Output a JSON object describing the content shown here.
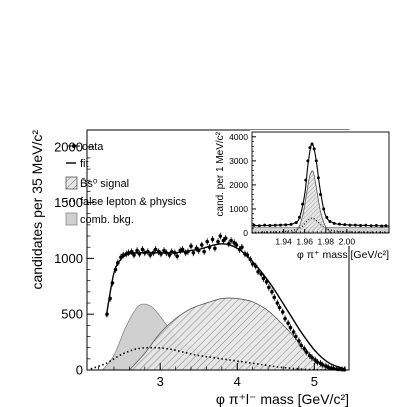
{
  "chart_data": [
    {
      "type": "line",
      "xlabel": "φ π⁺l⁻ mass [GeV/c²]",
      "ylabel": "candidates per 35 MeV/c²",
      "xlim": [
        2.05,
        5.45
      ],
      "ylim": [
        0,
        2150
      ],
      "xticks": [
        3,
        4,
        5
      ],
      "yticks": [
        0,
        500,
        1000,
        1500,
        2000
      ],
      "legend": {
        "placement": "top-left",
        "entries": [
          {
            "label": "data",
            "style": "marker"
          },
          {
            "label": "fit",
            "style": "solid-line"
          },
          {
            "label": "B̄s⁰ signal",
            "style": "hatched-fill"
          },
          {
            "label": "false lepton & physics",
            "style": "dotted-line"
          },
          {
            "label": "comb. bkg.",
            "style": "gray-fill"
          }
        ]
      },
      "data": {
        "x": [
          2.31,
          2.35,
          2.38,
          2.42,
          2.45,
          2.49,
          2.52,
          2.56,
          2.59,
          2.63,
          2.66,
          2.7,
          2.73,
          2.77,
          2.8,
          2.84,
          2.87,
          2.91,
          2.94,
          2.98,
          3.01,
          3.05,
          3.08,
          3.12,
          3.15,
          3.19,
          3.22,
          3.26,
          3.29,
          3.33,
          3.36,
          3.4,
          3.43,
          3.47,
          3.5,
          3.54,
          3.57,
          3.61,
          3.64,
          3.68,
          3.71,
          3.75,
          3.78,
          3.82,
          3.85,
          3.89,
          3.92,
          3.96,
          3.99,
          4.03,
          4.06,
          4.1,
          4.13,
          4.17,
          4.2,
          4.24,
          4.27,
          4.31,
          4.34,
          4.38,
          4.41,
          4.45,
          4.48,
          4.52,
          4.55,
          4.59,
          4.62,
          4.66,
          4.69,
          4.73,
          4.76,
          4.8,
          4.83,
          4.87,
          4.9,
          4.94,
          4.97,
          5.01,
          5.04,
          5.08,
          5.11,
          5.15,
          5.18,
          5.22,
          5.25,
          5.29,
          5.32,
          5.36,
          5.39
        ],
        "y": [
          500,
          640,
          780,
          900,
          960,
          1010,
          1030,
          1040,
          1050,
          1060,
          1030,
          1070,
          1040,
          1080,
          1050,
          1060,
          1030,
          1050,
          1080,
          1060,
          1040,
          1070,
          1050,
          1030,
          1060,
          1050,
          1020,
          1070,
          1080,
          1050,
          1060,
          1110,
          1050,
          1090,
          1070,
          1120,
          1060,
          1150,
          1100,
          1170,
          1090,
          1150,
          1200,
          1160,
          1180,
          1130,
          1160,
          1140,
          1120,
          1080,
          1100,
          1040,
          1030,
          990,
          950,
          930,
          880,
          860,
          820,
          790,
          740,
          700,
          650,
          600,
          560,
          520,
          460,
          420,
          380,
          340,
          300,
          260,
          220,
          190,
          160,
          130,
          110,
          90,
          70,
          60,
          45,
          35,
          25,
          18,
          12,
          8,
          5,
          3,
          2
        ],
        "yerr": 30
      },
      "fit": {
        "x": [
          2.3,
          2.4,
          2.5,
          2.6,
          2.7,
          2.8,
          2.9,
          3.0,
          3.1,
          3.2,
          3.3,
          3.4,
          3.5,
          3.6,
          3.7,
          3.8,
          3.9,
          4.0,
          4.1,
          4.2,
          4.3,
          4.4,
          4.5,
          4.6,
          4.7,
          4.8,
          4.9,
          5.0,
          5.1,
          5.2,
          5.3,
          5.4
        ],
        "y": [
          480,
          870,
          1000,
          1040,
          1050,
          1050,
          1050,
          1050,
          1050,
          1050,
          1060,
          1070,
          1080,
          1100,
          1120,
          1130,
          1120,
          1090,
          1040,
          970,
          890,
          800,
          700,
          590,
          480,
          370,
          270,
          180,
          110,
          60,
          30,
          10
        ]
      },
      "signal": {
        "x": [
          2.6,
          2.8,
          3.0,
          3.2,
          3.4,
          3.6,
          3.8,
          4.0,
          4.2,
          4.4,
          4.6,
          4.8,
          5.0,
          5.2,
          5.4
        ],
        "y": [
          0,
          150,
          330,
          460,
          550,
          600,
          640,
          640,
          610,
          530,
          400,
          250,
          100,
          20,
          0
        ]
      },
      "false_lepton_physics": {
        "x": [
          2.1,
          2.3,
          2.5,
          2.7,
          2.9,
          3.1,
          3.3,
          3.5,
          3.7,
          3.9,
          4.1,
          4.3,
          4.5,
          4.7,
          4.9,
          5.1,
          5.3
        ],
        "y": [
          10,
          60,
          140,
          190,
          200,
          190,
          160,
          130,
          110,
          90,
          70,
          50,
          30,
          15,
          5,
          2,
          0
        ]
      },
      "comb_bkg": {
        "x": [
          2.25,
          2.4,
          2.55,
          2.7,
          2.8,
          2.9,
          3.0,
          3.2,
          3.4,
          3.6,
          3.8,
          4.0,
          4.2,
          4.4,
          4.6
        ],
        "y": [
          0,
          130,
          380,
          560,
          590,
          560,
          480,
          300,
          200,
          150,
          100,
          70,
          40,
          15,
          0
        ]
      }
    },
    {
      "type": "line",
      "xlabel": "φ π⁺ mass [GeV/c²]",
      "ylabel": "cand. per 1 MeV/c²",
      "xlim": [
        1.91,
        2.04
      ],
      "ylim": [
        0,
        4200
      ],
      "xticks": [
        1.94,
        1.96,
        1.98,
        2.0
      ],
      "xtick_labels": [
        "1.94",
        "1.96",
        "1.98",
        "2.00"
      ],
      "yticks": [
        0,
        1000,
        2000,
        3000,
        4000
      ],
      "data": {
        "x": [
          1.912,
          1.917,
          1.922,
          1.927,
          1.932,
          1.937,
          1.942,
          1.947,
          1.952,
          1.955,
          1.958,
          1.961,
          1.963,
          1.965,
          1.967,
          1.969,
          1.971,
          1.973,
          1.975,
          1.978,
          1.981,
          1.984,
          1.988,
          1.993,
          1.998,
          2.003,
          2.008,
          2.013,
          2.018,
          2.023,
          2.028,
          2.033,
          2.037
        ],
        "y": [
          320,
          300,
          330,
          310,
          320,
          330,
          340,
          360,
          430,
          650,
          1200,
          2200,
          3000,
          3550,
          3700,
          3500,
          3000,
          2300,
          1600,
          1000,
          650,
          480,
          400,
          370,
          350,
          330,
          330,
          310,
          320,
          300,
          310,
          290,
          300
        ]
      },
      "fit": {
        "x": [
          1.91,
          1.93,
          1.945,
          1.95,
          1.955,
          1.96,
          1.963,
          1.966,
          1.968,
          1.971,
          1.974,
          1.978,
          1.982,
          1.99,
          2.0,
          2.02,
          2.04
        ],
        "y": [
          310,
          320,
          350,
          410,
          620,
          1600,
          2800,
          3650,
          3650,
          3000,
          2000,
          1000,
          560,
          380,
          340,
          310,
          290
        ]
      },
      "signal": {
        "x": [
          1.947,
          1.953,
          1.958,
          1.962,
          1.965,
          1.968,
          1.971,
          1.975,
          1.98,
          1.986
        ],
        "y": [
          0,
          120,
          700,
          1700,
          2400,
          2550,
          1900,
          900,
          250,
          0
        ]
      },
      "false_lepton_physics": {
        "x": [
          1.91,
          1.94,
          1.955,
          1.962,
          1.967,
          1.972,
          1.98,
          1.995,
          2.04
        ],
        "y": [
          30,
          60,
          200,
          480,
          620,
          480,
          200,
          60,
          20
        ]
      },
      "comb_bkg": {
        "x": [
          1.91,
          2.04
        ],
        "y": [
          240,
          230
        ]
      }
    }
  ],
  "colors": {
    "signal_hatch": "#7a7a7a",
    "signal_fill": "#e6e6e6",
    "comb_fill": "#d0d0d0",
    "comb_stroke": "#888888",
    "line": "#000000"
  }
}
